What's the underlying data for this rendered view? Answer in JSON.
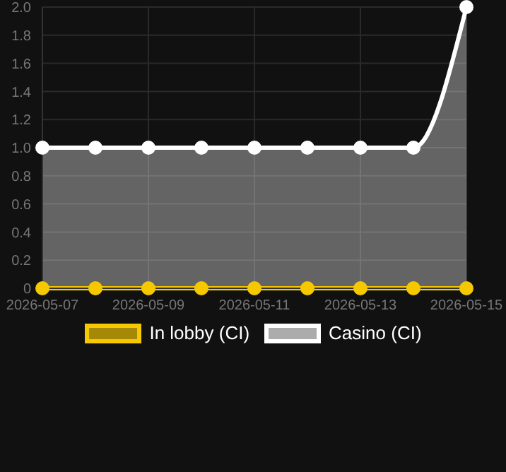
{
  "chart_data": {
    "type": "area",
    "x": [
      "2026-05-07",
      "2026-05-08",
      "2026-05-09",
      "2026-05-10",
      "2026-05-11",
      "2026-05-12",
      "2026-05-13",
      "2026-05-14",
      "2026-05-15"
    ],
    "series": [
      {
        "name": "In lobby (CI)",
        "type": "line",
        "color": "#f5c800",
        "values": [
          0,
          0,
          0,
          0,
          0,
          0,
          0,
          0,
          0
        ]
      },
      {
        "name": "Casino (CI)",
        "color": "#ffffff",
        "values": [
          1,
          1,
          1,
          1,
          1,
          1,
          1,
          1,
          2
        ]
      }
    ],
    "xlim": [
      "2026-05-07",
      "2026-05-15"
    ],
    "xticks": [
      "2026-05-07",
      "2026-05-09",
      "2026-05-11",
      "2026-05-13",
      "2026-05-15"
    ],
    "ylim": [
      0,
      2
    ],
    "yticks": [
      0,
      0.2,
      0.4,
      0.6,
      0.8,
      {
        "value": 1,
        "label": "1.0"
      },
      1.2,
      1.4,
      1.6,
      1.8,
      {
        "value": 2,
        "label": "2.0"
      }
    ],
    "grid": true,
    "legend": "bottom",
    "marker": "circle",
    "line_style": "solid"
  }
}
